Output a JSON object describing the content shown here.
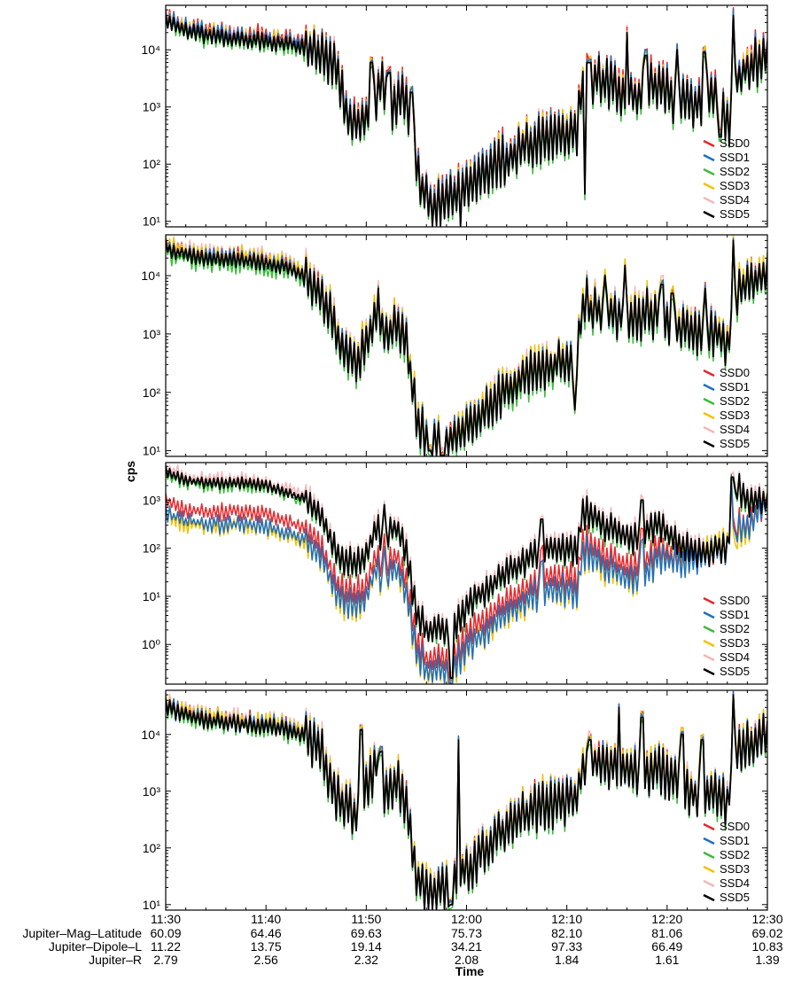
{
  "ylabel": "cps",
  "xlabel": "Time",
  "x_ticks": [
    "11:30",
    "11:40",
    "11:50",
    "12:00",
    "12:10",
    "12:20",
    "12:30"
  ],
  "ephemeris": [
    {
      "label": "Jupiter–Mag–Latitude",
      "values": [
        "60.09",
        "64.46",
        "69.63",
        "75.73",
        "82.10",
        "81.06",
        "69.02"
      ]
    },
    {
      "label": "Jupiter–Dipole–L",
      "values": [
        "11.22",
        "13.75",
        "19.14",
        "34.21",
        "97.33",
        "66.49",
        "10.83"
      ]
    },
    {
      "label": "Jupiter–R",
      "values": [
        "2.79",
        "2.56",
        "2.32",
        "2.08",
        "1.84",
        "1.61",
        "1.39"
      ]
    }
  ],
  "colors": {
    "SSD0": "#e8262a",
    "SSD1": "#1f6fbf",
    "SSD2": "#3cba3c",
    "SSD3": "#f2c200",
    "SSD4": "#f4b7b7",
    "SSD5": "#000000"
  },
  "chart_data": [
    {
      "type": "line",
      "scale": "log",
      "xlim": [
        "11:30",
        "12:30"
      ],
      "ylim": [
        8,
        60000
      ],
      "yticks": [
        "10¹",
        "10²",
        "10³",
        "10⁴"
      ],
      "legend_position": "bottom-right",
      "series_names": [
        "SSD0",
        "SSD1",
        "SSD2",
        "SSD3",
        "SSD4",
        "SSD5"
      ],
      "profile": [
        [
          0,
          30000
        ],
        [
          2,
          22000
        ],
        [
          4,
          18000
        ],
        [
          6,
          16000
        ],
        [
          8,
          15000
        ],
        [
          10,
          14000
        ],
        [
          12,
          13000
        ],
        [
          14,
          11000
        ],
        [
          16,
          8000
        ],
        [
          17,
          4000
        ],
        [
          17.7,
          1500
        ],
        [
          18.3,
          500
        ],
        [
          19.5,
          400
        ],
        [
          20.5,
          900
        ],
        [
          21.5,
          3000
        ],
        [
          22.5,
          800
        ],
        [
          23.5,
          1500
        ],
        [
          24.5,
          500
        ],
        [
          25.5,
          40
        ],
        [
          26.5,
          20
        ],
        [
          27.5,
          18
        ],
        [
          28.5,
          25
        ],
        [
          29.5,
          30
        ],
        [
          31,
          50
        ],
        [
          33,
          100
        ],
        [
          35,
          150
        ],
        [
          37,
          250
        ],
        [
          39,
          300
        ],
        [
          41,
          350
        ],
        [
          41.5,
          2500
        ],
        [
          43,
          3000
        ],
        [
          45,
          2000
        ],
        [
          47,
          1500
        ],
        [
          49,
          2500
        ],
        [
          51,
          1200
        ],
        [
          53,
          1000
        ],
        [
          55,
          1500
        ],
        [
          56,
          400
        ],
        [
          57,
          3000
        ],
        [
          58,
          5000
        ],
        [
          60,
          8000
        ]
      ],
      "spikes": [
        [
          20.5,
          6000
        ],
        [
          22.3,
          4000
        ],
        [
          24.5,
          1800
        ],
        [
          29.4,
          8
        ],
        [
          41.8,
          30
        ],
        [
          42.3,
          6000
        ],
        [
          44,
          7000
        ],
        [
          46,
          20000
        ],
        [
          47.9,
          8000
        ],
        [
          51,
          10000
        ],
        [
          53.7,
          9000
        ],
        [
          56.6,
          40000
        ],
        [
          55.3,
          300
        ]
      ],
      "noise": 0.45,
      "jitter": {
        "SSD0": 0.1,
        "SSD1": 0.05,
        "SSD2": -0.05,
        "SSD3": 0.06,
        "SSD4": 0.08,
        "SSD5": 0
      }
    },
    {
      "type": "line",
      "scale": "log",
      "xlim": [
        "11:30",
        "12:30"
      ],
      "ylim": [
        8,
        50000
      ],
      "yticks": [
        "10¹",
        "10²",
        "10³",
        "10⁴"
      ],
      "legend_position": "bottom-right",
      "series_names": [
        "SSD0",
        "SSD1",
        "SSD2",
        "SSD3",
        "SSD4",
        "SSD5"
      ],
      "profile": [
        [
          0,
          30000
        ],
        [
          2,
          22000
        ],
        [
          4,
          20000
        ],
        [
          6,
          19000
        ],
        [
          8,
          18000
        ],
        [
          10,
          17000
        ],
        [
          12,
          14000
        ],
        [
          14,
          9000
        ],
        [
          15.5,
          5000
        ],
        [
          16.5,
          2000
        ],
        [
          17.5,
          500
        ],
        [
          19,
          350
        ],
        [
          20,
          600
        ],
        [
          21,
          2500
        ],
        [
          22,
          800
        ],
        [
          23,
          1500
        ],
        [
          24,
          700
        ],
        [
          25,
          40
        ],
        [
          26,
          15
        ],
        [
          27,
          12
        ],
        [
          28,
          15
        ],
        [
          29,
          20
        ],
        [
          31,
          30
        ],
        [
          33,
          80
        ],
        [
          35,
          150
        ],
        [
          37,
          250
        ],
        [
          39,
          300
        ],
        [
          41,
          400
        ],
        [
          41.5,
          2500
        ],
        [
          43,
          2500
        ],
        [
          45,
          2000
        ],
        [
          47,
          1800
        ],
        [
          49,
          2000
        ],
        [
          51,
          1200
        ],
        [
          53,
          1000
        ],
        [
          55,
          1000
        ],
        [
          56,
          500
        ],
        [
          57,
          5000
        ],
        [
          58,
          7000
        ],
        [
          60,
          10000
        ]
      ],
      "spikes": [
        [
          21.2,
          6000
        ],
        [
          26.3,
          10
        ],
        [
          27.5,
          8
        ],
        [
          40.8,
          50
        ],
        [
          42,
          9000
        ],
        [
          43.8,
          10000
        ],
        [
          45.8,
          15000
        ],
        [
          48,
          6000
        ],
        [
          49.5,
          7000
        ],
        [
          50.5,
          5000
        ],
        [
          53.8,
          6000
        ],
        [
          56.6,
          40000
        ]
      ],
      "noise": 0.4,
      "jitter": {
        "SSD0": 0.05,
        "SSD1": 0.03,
        "SSD2": -0.08,
        "SSD3": 0.08,
        "SSD4": 0.1,
        "SSD5": 0
      }
    },
    {
      "type": "line",
      "scale": "log",
      "xlim": [
        "11:30",
        "12:30"
      ],
      "ylim": [
        0.15,
        6000
      ],
      "yticks": [
        "10⁰",
        "10¹",
        "10²",
        "10³"
      ],
      "legend_position": "bottom-right",
      "series_names": [
        "SSD0",
        "SSD1",
        "SSD2",
        "SSD3",
        "SSD4",
        "SSD5"
      ],
      "profile": [
        [
          0,
          4000
        ],
        [
          2,
          2500
        ],
        [
          4,
          2300
        ],
        [
          6,
          2200
        ],
        [
          8,
          2300
        ],
        [
          10,
          2000
        ],
        [
          12,
          1500
        ],
        [
          14,
          1000
        ],
        [
          15.5,
          500
        ],
        [
          16.5,
          150
        ],
        [
          17.5,
          60
        ],
        [
          19,
          50
        ],
        [
          20,
          80
        ],
        [
          21,
          250
        ],
        [
          22,
          150
        ],
        [
          23,
          300
        ],
        [
          24,
          80
        ],
        [
          25,
          5
        ],
        [
          26,
          2
        ],
        [
          27,
          2
        ],
        [
          28,
          2
        ],
        [
          29,
          3
        ],
        [
          31,
          10
        ],
        [
          33,
          20
        ],
        [
          35,
          40
        ],
        [
          37,
          80
        ],
        [
          39,
          100
        ],
        [
          41,
          80
        ],
        [
          41.5,
          500
        ],
        [
          43,
          400
        ],
        [
          45,
          200
        ],
        [
          47,
          150
        ],
        [
          49,
          300
        ],
        [
          51,
          150
        ],
        [
          53,
          80
        ],
        [
          55,
          100
        ],
        [
          56,
          100
        ],
        [
          57,
          2000
        ],
        [
          58,
          1000
        ],
        [
          60,
          1000
        ]
      ],
      "spikes": [
        [
          21.8,
          800
        ],
        [
          28.5,
          0.2
        ],
        [
          37.5,
          400
        ],
        [
          42,
          1200
        ],
        [
          47.5,
          1000
        ],
        [
          56.5,
          3000
        ]
      ],
      "noise": 0.35,
      "depressed": {
        "SSD0": {
          "factor": 0.25,
          "end": 48,
          "tail": 0.12
        },
        "SSD1": {
          "factor": 0.14,
          "end": 48,
          "tail": 0.1
        },
        "SSD3": {
          "factor": 0.1,
          "end": 48,
          "tail": 0.05
        }
      },
      "jitter": {
        "SSD0": 0,
        "SSD1": 0,
        "SSD2": -0.05,
        "SSD3": 0.1,
        "SSD4": 0.08,
        "SSD5": 0
      }
    },
    {
      "type": "line",
      "scale": "log",
      "xlim": [
        "11:30",
        "12:30"
      ],
      "ylim": [
        8,
        60000
      ],
      "yticks": [
        "10¹",
        "10²",
        "10³",
        "10⁴"
      ],
      "legend_position": "bottom-right",
      "series_names": [
        "SSD0",
        "SSD1",
        "SSD2",
        "SSD3",
        "SSD4",
        "SSD5"
      ],
      "profile": [
        [
          0,
          30000
        ],
        [
          2,
          22000
        ],
        [
          4,
          18000
        ],
        [
          6,
          16000
        ],
        [
          8,
          15000
        ],
        [
          10,
          14000
        ],
        [
          12,
          12000
        ],
        [
          14,
          9000
        ],
        [
          15.5,
          5000
        ],
        [
          16.5,
          1500
        ],
        [
          17.5,
          500
        ],
        [
          19,
          400
        ],
        [
          20,
          1000
        ],
        [
          21,
          3000
        ],
        [
          22,
          800
        ],
        [
          23,
          1500
        ],
        [
          24,
          600
        ],
        [
          25,
          30
        ],
        [
          26,
          15
        ],
        [
          27,
          15
        ],
        [
          28,
          20
        ],
        [
          29,
          30
        ],
        [
          31,
          60
        ],
        [
          33,
          150
        ],
        [
          35,
          300
        ],
        [
          37,
          500
        ],
        [
          39,
          600
        ],
        [
          41,
          800
        ],
        [
          41.5,
          2500
        ],
        [
          43,
          3000
        ],
        [
          45,
          2500
        ],
        [
          47,
          2000
        ],
        [
          49,
          2500
        ],
        [
          51,
          1500
        ],
        [
          53,
          800
        ],
        [
          55,
          1000
        ],
        [
          56,
          600
        ],
        [
          57,
          5000
        ],
        [
          58,
          6000
        ],
        [
          60,
          9000
        ]
      ],
      "spikes": [
        [
          19.5,
          12000
        ],
        [
          21.5,
          5000
        ],
        [
          28.5,
          10
        ],
        [
          29.2,
          8000
        ],
        [
          42.3,
          8000
        ],
        [
          45.2,
          30000
        ],
        [
          47.5,
          20000
        ],
        [
          51.5,
          10000
        ],
        [
          53.5,
          8000
        ],
        [
          56.6,
          50000
        ]
      ],
      "noise": 0.45,
      "jitter": {
        "SSD0": 0.05,
        "SSD1": 0.03,
        "SSD2": -0.05,
        "SSD3": 0.07,
        "SSD4": 0.1,
        "SSD5": 0
      }
    }
  ]
}
